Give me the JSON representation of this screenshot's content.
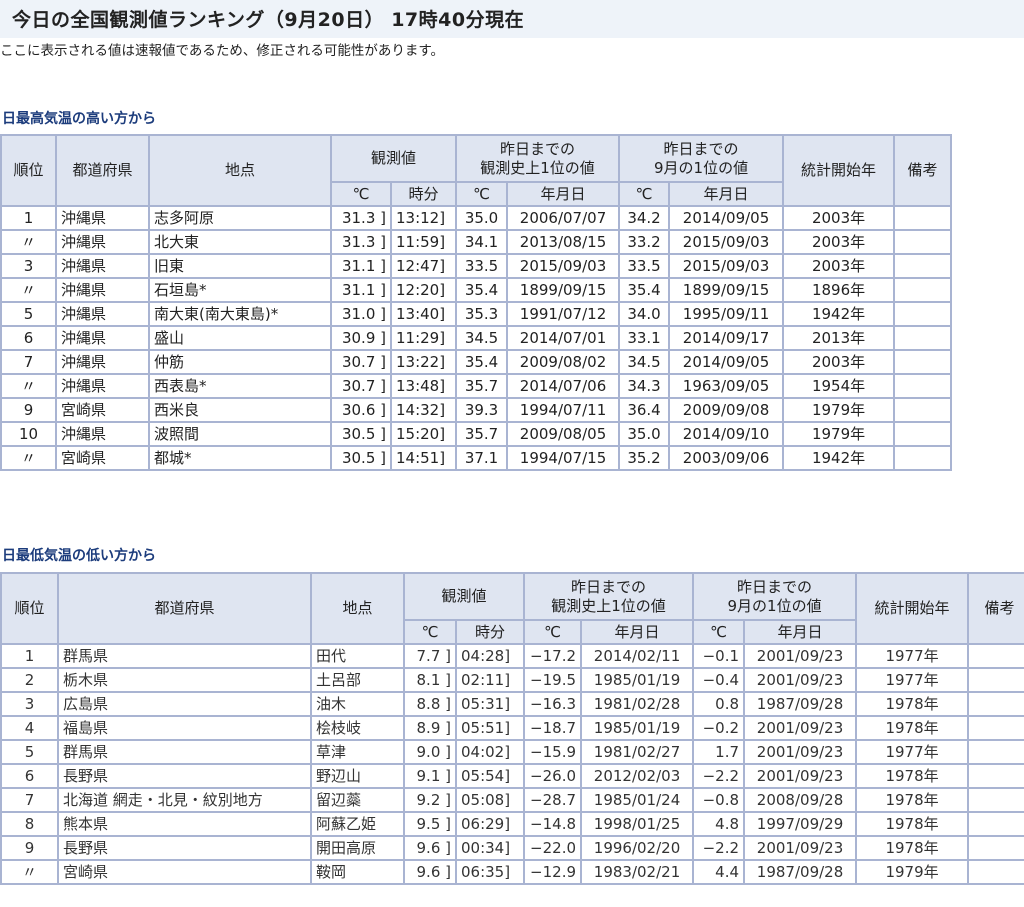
{
  "page": {
    "title": "今日の全国観測値ランキング（9月20日） 17時40分現在",
    "notice": "ここに表示される値は速報値であるため、修正される可能性があります。"
  },
  "colors": {
    "title_bg": "#eef3f9",
    "section_heading": "#1c3c7c",
    "header_bg": "#dfe5f1",
    "border": "#a9b4d2"
  },
  "headers": {
    "rank": "順位",
    "prefecture": "都道府県",
    "place": "地点",
    "observed": "観測値",
    "record_line1": "昨日までの",
    "record_line2": "観測史上1位の値",
    "month_line1": "昨日までの",
    "month_line2": "9月の1位の値",
    "start_year": "統計開始年",
    "remarks": "備考",
    "celsius": "℃",
    "time": "時分",
    "date": "年月日"
  },
  "high_table": {
    "heading": "日最高気温の高い方から",
    "rows": [
      [
        "1",
        "沖縄県",
        "志多阿原",
        "31.3 ]",
        "13:12]",
        "35.0",
        "2006/07/07",
        "34.2",
        "2014/09/05",
        "2003年",
        ""
      ],
      [
        "〃",
        "沖縄県",
        "北大東",
        "31.3 ]",
        "11:59]",
        "34.1",
        "2013/08/15",
        "33.2",
        "2015/09/03",
        "2003年",
        ""
      ],
      [
        "3",
        "沖縄県",
        "旧東",
        "31.1 ]",
        "12:47]",
        "33.5",
        "2015/09/03",
        "33.5",
        "2015/09/03",
        "2003年",
        ""
      ],
      [
        "〃",
        "沖縄県",
        "石垣島*",
        "31.1 ]",
        "12:20]",
        "35.4",
        "1899/09/15",
        "35.4",
        "1899/09/15",
        "1896年",
        ""
      ],
      [
        "5",
        "沖縄県",
        "南大東(南大東島)*",
        "31.0 ]",
        "13:40]",
        "35.3",
        "1991/07/12",
        "34.0",
        "1995/09/11",
        "1942年",
        ""
      ],
      [
        "6",
        "沖縄県",
        "盛山",
        "30.9 ]",
        "11:29]",
        "34.5",
        "2014/07/01",
        "33.1",
        "2014/09/17",
        "2013年",
        ""
      ],
      [
        "7",
        "沖縄県",
        "仲筋",
        "30.7 ]",
        "13:22]",
        "35.4",
        "2009/08/02",
        "34.5",
        "2014/09/05",
        "2003年",
        ""
      ],
      [
        "〃",
        "沖縄県",
        "西表島*",
        "30.7 ]",
        "13:48]",
        "35.7",
        "2014/07/06",
        "34.3",
        "1963/09/05",
        "1954年",
        ""
      ],
      [
        "9",
        "宮崎県",
        "西米良",
        "30.6 ]",
        "14:32]",
        "39.3",
        "1994/07/11",
        "36.4",
        "2009/09/08",
        "1979年",
        ""
      ],
      [
        "10",
        "沖縄県",
        "波照間",
        "30.5 ]",
        "15:20]",
        "35.7",
        "2009/08/05",
        "35.0",
        "2014/09/10",
        "1979年",
        ""
      ],
      [
        "〃",
        "宮崎県",
        "都城*",
        "30.5 ]",
        "14:51]",
        "37.1",
        "1994/07/15",
        "35.2",
        "2003/09/06",
        "1942年",
        ""
      ]
    ]
  },
  "low_table": {
    "heading": "日最低気温の低い方から",
    "rows": [
      [
        "1",
        "群馬県",
        "田代",
        "7.7 ]",
        "04:28]",
        "−17.2",
        "2014/02/11",
        "−0.1",
        "2001/09/23",
        "1977年",
        ""
      ],
      [
        "2",
        "栃木県",
        "土呂部",
        "8.1 ]",
        "02:11]",
        "−19.5",
        "1985/01/19",
        "−0.4",
        "2001/09/23",
        "1977年",
        ""
      ],
      [
        "3",
        "広島県",
        "油木",
        "8.8 ]",
        "05:31]",
        "−16.3",
        "1981/02/28",
        "0.8",
        "1987/09/28",
        "1978年",
        ""
      ],
      [
        "4",
        "福島県",
        "桧枝岐",
        "8.9 ]",
        "05:51]",
        "−18.7",
        "1985/01/19",
        "−0.2",
        "2001/09/23",
        "1978年",
        ""
      ],
      [
        "5",
        "群馬県",
        "草津",
        "9.0 ]",
        "04:02]",
        "−15.9",
        "1981/02/27",
        "1.7",
        "2001/09/23",
        "1977年",
        ""
      ],
      [
        "6",
        "長野県",
        "野辺山",
        "9.1 ]",
        "05:54]",
        "−26.0",
        "2012/02/03",
        "−2.2",
        "2001/09/23",
        "1978年",
        ""
      ],
      [
        "7",
        "北海道 網走・北見・紋別地方",
        "留辺蘂",
        "9.2 ]",
        "05:08]",
        "−28.7",
        "1985/01/24",
        "−0.8",
        "2008/09/28",
        "1978年",
        ""
      ],
      [
        "8",
        "熊本県",
        "阿蘇乙姫",
        "9.5 ]",
        "06:29]",
        "−14.8",
        "1998/01/25",
        "4.8",
        "1997/09/29",
        "1978年",
        ""
      ],
      [
        "9",
        "長野県",
        "開田高原",
        "9.6 ]",
        "00:34]",
        "−22.0",
        "1996/02/20",
        "−2.2",
        "2001/09/23",
        "1978年",
        ""
      ],
      [
        "〃",
        "宮崎県",
        "鞍岡",
        "9.6 ]",
        "06:35]",
        "−12.9",
        "1983/02/21",
        "4.4",
        "1987/09/28",
        "1979年",
        ""
      ]
    ]
  }
}
